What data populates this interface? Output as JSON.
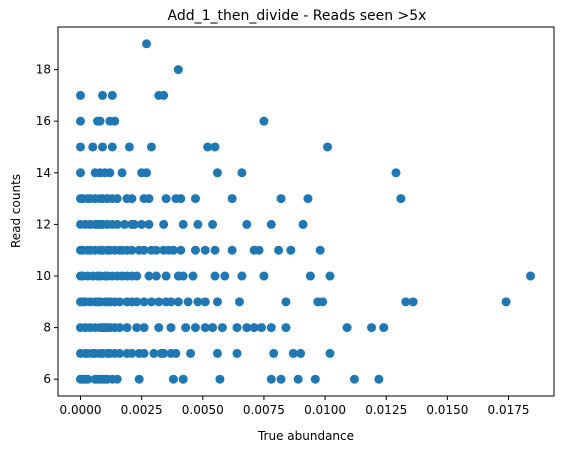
{
  "chart_data": {
    "type": "scatter",
    "title": "Add_1_then_divide - Reads seen >5x",
    "xlabel": "True abundance",
    "ylabel": "Read counts",
    "xlim": [
      -0.00092,
      0.01936
    ],
    "ylim": [
      5.35,
      19.65
    ],
    "xticks": [
      0.0,
      0.0025,
      0.005,
      0.0075,
      0.01,
      0.0125,
      0.015,
      0.0175
    ],
    "xtick_labels": [
      "0.0000",
      "0.0025",
      "0.0050",
      "0.0075",
      "0.0100",
      "0.0125",
      "0.0150",
      "0.0175"
    ],
    "yticks": [
      6,
      8,
      10,
      12,
      14,
      16,
      18
    ],
    "ytick_labels": [
      "6",
      "8",
      "10",
      "12",
      "14",
      "16",
      "18"
    ],
    "grid": false,
    "marker_color": "#1f77b4",
    "series": [
      {
        "points": [
          [
            0.0,
            6
          ],
          [
            0.0001,
            6
          ],
          [
            0.0002,
            6
          ],
          [
            0.0003,
            6
          ],
          [
            0.0006,
            6
          ],
          [
            0.0007,
            6
          ],
          [
            0.0008,
            6
          ],
          [
            0.0009,
            6
          ],
          [
            0.001,
            6
          ],
          [
            0.0011,
            6
          ],
          [
            0.0013,
            6
          ],
          [
            0.0015,
            6
          ],
          [
            0.0024,
            6
          ],
          [
            0.0038,
            6
          ],
          [
            0.0042,
            6
          ],
          [
            0.0057,
            6
          ],
          [
            0.0078,
            6
          ],
          [
            0.0082,
            6
          ],
          [
            0.0089,
            6
          ],
          [
            0.0096,
            6
          ],
          [
            0.0112,
            6
          ],
          [
            0.0122,
            6
          ],
          [
            0.0,
            7
          ],
          [
            0.0002,
            7
          ],
          [
            0.0003,
            7
          ],
          [
            0.0005,
            7
          ],
          [
            0.0006,
            7
          ],
          [
            0.0008,
            7
          ],
          [
            0.0009,
            7
          ],
          [
            0.0011,
            7
          ],
          [
            0.0012,
            7
          ],
          [
            0.0014,
            7
          ],
          [
            0.0016,
            7
          ],
          [
            0.0019,
            7
          ],
          [
            0.0021,
            7
          ],
          [
            0.0024,
            7
          ],
          [
            0.0026,
            7
          ],
          [
            0.003,
            7
          ],
          [
            0.0033,
            7
          ],
          [
            0.0034,
            7
          ],
          [
            0.0037,
            7
          ],
          [
            0.0039,
            7
          ],
          [
            0.0045,
            7
          ],
          [
            0.0056,
            7
          ],
          [
            0.0064,
            7
          ],
          [
            0.0079,
            7
          ],
          [
            0.0087,
            7
          ],
          [
            0.009,
            7
          ],
          [
            0.0102,
            7
          ],
          [
            0.0,
            8
          ],
          [
            0.0002,
            8
          ],
          [
            0.0004,
            8
          ],
          [
            0.0006,
            8
          ],
          [
            0.0008,
            8
          ],
          [
            0.0009,
            8
          ],
          [
            0.001,
            8
          ],
          [
            0.0011,
            8
          ],
          [
            0.0012,
            8
          ],
          [
            0.0014,
            8
          ],
          [
            0.0016,
            8
          ],
          [
            0.0019,
            8
          ],
          [
            0.0023,
            8
          ],
          [
            0.0026,
            8
          ],
          [
            0.0032,
            8
          ],
          [
            0.0037,
            8
          ],
          [
            0.0043,
            8
          ],
          [
            0.0047,
            8
          ],
          [
            0.0051,
            8
          ],
          [
            0.0054,
            8
          ],
          [
            0.0058,
            8
          ],
          [
            0.0064,
            8
          ],
          [
            0.0068,
            8
          ],
          [
            0.0071,
            8
          ],
          [
            0.0074,
            8
          ],
          [
            0.0078,
            8
          ],
          [
            0.0084,
            8
          ],
          [
            0.0109,
            8
          ],
          [
            0.0119,
            8
          ],
          [
            0.0124,
            8
          ],
          [
            0.0,
            9
          ],
          [
            0.0001,
            9
          ],
          [
            0.0002,
            9
          ],
          [
            0.0004,
            9
          ],
          [
            0.0006,
            9
          ],
          [
            0.0007,
            9
          ],
          [
            0.0008,
            9
          ],
          [
            0.001,
            9
          ],
          [
            0.0011,
            9
          ],
          [
            0.0012,
            9
          ],
          [
            0.0014,
            9
          ],
          [
            0.0016,
            9
          ],
          [
            0.0019,
            9
          ],
          [
            0.0021,
            9
          ],
          [
            0.0023,
            9
          ],
          [
            0.0026,
            9
          ],
          [
            0.0029,
            9
          ],
          [
            0.0032,
            9
          ],
          [
            0.0035,
            9
          ],
          [
            0.0037,
            9
          ],
          [
            0.004,
            9
          ],
          [
            0.0044,
            9
          ],
          [
            0.0048,
            9
          ],
          [
            0.0051,
            9
          ],
          [
            0.0056,
            9
          ],
          [
            0.0065,
            9
          ],
          [
            0.0084,
            9
          ],
          [
            0.0097,
            9
          ],
          [
            0.0099,
            9
          ],
          [
            0.0133,
            9
          ],
          [
            0.0136,
            9
          ],
          [
            0.0174,
            9
          ],
          [
            0.0,
            10
          ],
          [
            0.0001,
            10
          ],
          [
            0.0003,
            10
          ],
          [
            0.0005,
            10
          ],
          [
            0.0007,
            10
          ],
          [
            0.0008,
            10
          ],
          [
            0.001,
            10
          ],
          [
            0.0011,
            10
          ],
          [
            0.0013,
            10
          ],
          [
            0.0015,
            10
          ],
          [
            0.0017,
            10
          ],
          [
            0.0019,
            10
          ],
          [
            0.0021,
            10
          ],
          [
            0.0023,
            10
          ],
          [
            0.0028,
            10
          ],
          [
            0.0031,
            10
          ],
          [
            0.0035,
            10
          ],
          [
            0.004,
            10
          ],
          [
            0.0042,
            10
          ],
          [
            0.0046,
            10
          ],
          [
            0.0055,
            10
          ],
          [
            0.0059,
            10
          ],
          [
            0.0066,
            10
          ],
          [
            0.0075,
            10
          ],
          [
            0.0094,
            10
          ],
          [
            0.0102,
            10
          ],
          [
            0.0184,
            10
          ],
          [
            0.0,
            11
          ],
          [
            0.0001,
            11
          ],
          [
            0.0003,
            11
          ],
          [
            0.0004,
            11
          ],
          [
            0.0006,
            11
          ],
          [
            0.0008,
            11
          ],
          [
            0.0009,
            11
          ],
          [
            0.0011,
            11
          ],
          [
            0.0012,
            11
          ],
          [
            0.0014,
            11
          ],
          [
            0.0016,
            11
          ],
          [
            0.0017,
            11
          ],
          [
            0.0019,
            11
          ],
          [
            0.0021,
            11
          ],
          [
            0.0024,
            11
          ],
          [
            0.0026,
            11
          ],
          [
            0.0029,
            11
          ],
          [
            0.0031,
            11
          ],
          [
            0.0034,
            11
          ],
          [
            0.0036,
            11
          ],
          [
            0.0038,
            11
          ],
          [
            0.0041,
            11
          ],
          [
            0.0047,
            11
          ],
          [
            0.0051,
            11
          ],
          [
            0.0055,
            11
          ],
          [
            0.0062,
            11
          ],
          [
            0.0071,
            11
          ],
          [
            0.0073,
            11
          ],
          [
            0.0081,
            11
          ],
          [
            0.0086,
            11
          ],
          [
            0.0098,
            11
          ],
          [
            0.0,
            12
          ],
          [
            0.0002,
            12
          ],
          [
            0.0004,
            12
          ],
          [
            0.0006,
            12
          ],
          [
            0.0007,
            12
          ],
          [
            0.0008,
            12
          ],
          [
            0.0009,
            12
          ],
          [
            0.0011,
            12
          ],
          [
            0.0013,
            12
          ],
          [
            0.0015,
            12
          ],
          [
            0.0018,
            12
          ],
          [
            0.0021,
            12
          ],
          [
            0.0022,
            12
          ],
          [
            0.0025,
            12
          ],
          [
            0.0028,
            12
          ],
          [
            0.0034,
            12
          ],
          [
            0.0042,
            12
          ],
          [
            0.0048,
            12
          ],
          [
            0.0054,
            12
          ],
          [
            0.0068,
            12
          ],
          [
            0.0078,
            12
          ],
          [
            0.0091,
            12
          ],
          [
            0.0,
            13
          ],
          [
            0.0001,
            13
          ],
          [
            0.0003,
            13
          ],
          [
            0.0004,
            13
          ],
          [
            0.0006,
            13
          ],
          [
            0.0008,
            13
          ],
          [
            0.0009,
            13
          ],
          [
            0.0011,
            13
          ],
          [
            0.0013,
            13
          ],
          [
            0.0015,
            13
          ],
          [
            0.0019,
            13
          ],
          [
            0.0021,
            13
          ],
          [
            0.0026,
            13
          ],
          [
            0.0028,
            13
          ],
          [
            0.0035,
            13
          ],
          [
            0.0039,
            13
          ],
          [
            0.0041,
            13
          ],
          [
            0.0047,
            13
          ],
          [
            0.0062,
            13
          ],
          [
            0.0082,
            13
          ],
          [
            0.0093,
            13
          ],
          [
            0.0131,
            13
          ],
          [
            0.0,
            14
          ],
          [
            0.0006,
            14
          ],
          [
            0.0008,
            14
          ],
          [
            0.001,
            14
          ],
          [
            0.0012,
            14
          ],
          [
            0.0017,
            14
          ],
          [
            0.0025,
            14
          ],
          [
            0.0027,
            14
          ],
          [
            0.0056,
            14
          ],
          [
            0.0066,
            14
          ],
          [
            0.0129,
            14
          ],
          [
            0.0,
            15
          ],
          [
            0.0005,
            15
          ],
          [
            0.0009,
            15
          ],
          [
            0.0013,
            15
          ],
          [
            0.002,
            15
          ],
          [
            0.0029,
            15
          ],
          [
            0.0052,
            15
          ],
          [
            0.0055,
            15
          ],
          [
            0.0101,
            15
          ],
          [
            0.0,
            16
          ],
          [
            0.0007,
            16
          ],
          [
            0.0008,
            16
          ],
          [
            0.0012,
            16
          ],
          [
            0.0014,
            16
          ],
          [
            0.0075,
            16
          ],
          [
            0.0,
            17
          ],
          [
            0.0009,
            17
          ],
          [
            0.0013,
            17
          ],
          [
            0.0032,
            17
          ],
          [
            0.0034,
            17
          ],
          [
            0.004,
            18
          ],
          [
            0.0027,
            19
          ]
        ]
      }
    ]
  }
}
